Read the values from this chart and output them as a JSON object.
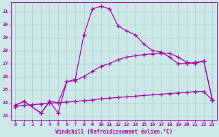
{
  "xlabel": "Windchill (Refroidissement éolien,°C)",
  "bg_color": "#cce8e8",
  "grid_color": "#aacccc",
  "line_color": "#aa00aa",
  "xlim": [
    -0.5,
    23.5
  ],
  "ylim": [
    22.7,
    31.7
  ],
  "yticks": [
    23,
    24,
    25,
    26,
    27,
    28,
    29,
    30,
    31
  ],
  "xticks": [
    0,
    1,
    2,
    3,
    4,
    5,
    6,
    7,
    8,
    9,
    10,
    11,
    12,
    13,
    14,
    15,
    16,
    17,
    18,
    19,
    20,
    21,
    22,
    23
  ],
  "curve1_x": [
    0,
    1,
    2,
    3,
    4,
    5,
    6,
    7,
    8,
    9,
    10,
    11,
    12,
    13,
    14,
    15,
    16,
    17,
    18,
    19,
    20,
    21,
    22,
    23
  ],
  "curve1_y": [
    23.7,
    23.8,
    23.85,
    23.9,
    23.95,
    24.0,
    24.05,
    24.1,
    24.15,
    24.2,
    24.3,
    24.35,
    24.4,
    24.45,
    24.5,
    24.55,
    24.6,
    24.65,
    24.7,
    24.75,
    24.8,
    24.85,
    24.85,
    24.2
  ],
  "curve2_x": [
    0,
    1,
    3,
    4,
    5,
    6,
    7,
    8,
    9,
    10,
    11,
    12,
    13,
    14,
    15,
    16,
    17,
    18,
    19,
    20,
    21,
    22,
    23
  ],
  "curve2_y": [
    23.8,
    24.1,
    23.2,
    24.1,
    24.0,
    25.6,
    25.7,
    26.0,
    26.4,
    26.8,
    27.0,
    27.3,
    27.5,
    27.6,
    27.7,
    27.75,
    27.8,
    27.8,
    27.5,
    27.1,
    27.0,
    27.2,
    24.2
  ],
  "curve3_x": [
    0,
    1,
    3,
    4,
    5,
    6,
    7,
    8,
    9,
    10,
    11,
    12,
    13,
    14,
    15,
    16,
    17,
    18,
    19,
    20,
    21,
    22,
    23
  ],
  "curve3_y": [
    23.8,
    24.1,
    23.2,
    24.1,
    23.2,
    25.6,
    25.8,
    29.2,
    31.2,
    31.4,
    31.2,
    29.9,
    29.5,
    29.2,
    28.5,
    28.0,
    27.9,
    27.5,
    27.0,
    27.0,
    27.1,
    27.2,
    24.2
  ]
}
